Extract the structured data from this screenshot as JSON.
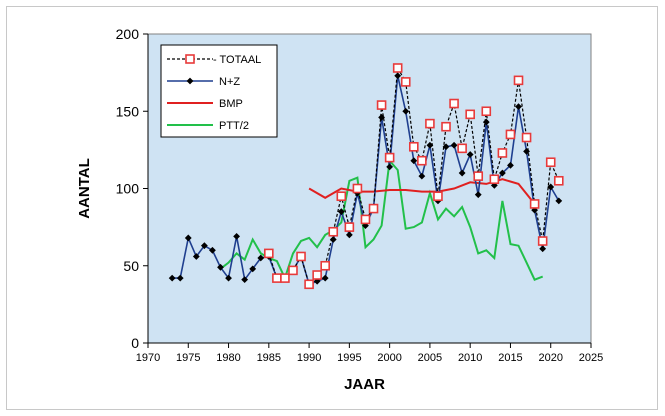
{
  "chart_data": {
    "type": "line",
    "title": "",
    "xlabel": "JAAR",
    "ylabel": "AANTAL",
    "xlim": [
      1970,
      2025
    ],
    "ylim": [
      0,
      200
    ],
    "x_ticks": [
      1970,
      1975,
      1980,
      1985,
      1990,
      1995,
      2000,
      2005,
      2010,
      2015,
      2020,
      2025
    ],
    "y_ticks": [
      0,
      50,
      100,
      150,
      200
    ],
    "grid": false,
    "plot_background": "#cfe3f3",
    "legend_position": "top-left",
    "series": [
      {
        "name": "TOTAAL",
        "color": "#000000",
        "marker_color": "#e83a3a",
        "style": "dashed-square-markers",
        "x": [
          1985,
          1986,
          1987,
          1988,
          1989,
          1990,
          1991,
          1992,
          1993,
          1994,
          1995,
          1996,
          1997,
          1998,
          1999,
          2000,
          2001,
          2002,
          2003,
          2004,
          2005,
          2006,
          2007,
          2008,
          2009,
          2010,
          2011,
          2012,
          2013,
          2014,
          2015,
          2016,
          2017,
          2018,
          2019,
          2020,
          2021
        ],
        "values": [
          58,
          42,
          42,
          47,
          56,
          38,
          44,
          50,
          72,
          95,
          75,
          100,
          80,
          87,
          154,
          120,
          178,
          169,
          127,
          118,
          142,
          95,
          140,
          155,
          126,
          148,
          108,
          150,
          106,
          123,
          135,
          170,
          133,
          90,
          66,
          117,
          105
        ]
      },
      {
        "name": "N+Z",
        "color": "#1f3f8f",
        "marker_color": "#000000",
        "style": "solid-diamond-markers",
        "x": [
          1973,
          1974,
          1975,
          1976,
          1977,
          1978,
          1979,
          1980,
          1981,
          1982,
          1983,
          1984,
          1985,
          1986,
          1987,
          1988,
          1989,
          1990,
          1991,
          1992,
          1993,
          1994,
          1995,
          1996,
          1997,
          1998,
          1999,
          2000,
          2001,
          2002,
          2003,
          2004,
          2005,
          2006,
          2007,
          2008,
          2009,
          2010,
          2011,
          2012,
          2013,
          2014,
          2015,
          2016,
          2017,
          2018,
          2019,
          2020,
          2021
        ],
        "values": [
          42,
          42,
          68,
          56,
          63,
          60,
          49,
          42,
          69,
          41,
          48,
          55,
          56,
          42,
          42,
          47,
          56,
          38,
          40,
          42,
          67,
          85,
          70,
          97,
          76,
          87,
          146,
          114,
          173,
          150,
          118,
          108,
          128,
          92,
          127,
          128,
          110,
          122,
          96,
          143,
          102,
          110,
          115,
          153,
          124,
          86,
          61,
          101,
          92
        ]
      },
      {
        "name": "BMP",
        "color": "#e02020",
        "style": "solid",
        "x": [
          1990,
          1992,
          1994,
          1996,
          1998,
          2000,
          2002,
          2004,
          2006,
          2008,
          2010,
          2012,
          2014,
          2016,
          2018
        ],
        "values": [
          100,
          94,
          100,
          98,
          98,
          99,
          99,
          98,
          98,
          100,
          104,
          103,
          106,
          103,
          90
        ]
      },
      {
        "name": "PTT/2",
        "color": "#22c04a",
        "style": "solid",
        "x": [
          1979,
          1980,
          1981,
          1982,
          1983,
          1984,
          1985,
          1986,
          1987,
          1988,
          1989,
          1990,
          1991,
          1992,
          1993,
          1994,
          1995,
          1996,
          1997,
          1998,
          1999,
          2000,
          2001,
          2002,
          2003,
          2004,
          2005,
          2006,
          2007,
          2008,
          2009,
          2010,
          2011,
          2012,
          2013,
          2014,
          2015,
          2016,
          2017,
          2018,
          2019
        ],
        "values": [
          48,
          52,
          58,
          54,
          67,
          58,
          55,
          53,
          42,
          58,
          66,
          68,
          62,
          70,
          73,
          78,
          105,
          107,
          62,
          67,
          76,
          118,
          112,
          74,
          75,
          78,
          97,
          80,
          87,
          82,
          88,
          75,
          58,
          60,
          55,
          92,
          64,
          63,
          52,
          41,
          43
        ]
      }
    ]
  }
}
